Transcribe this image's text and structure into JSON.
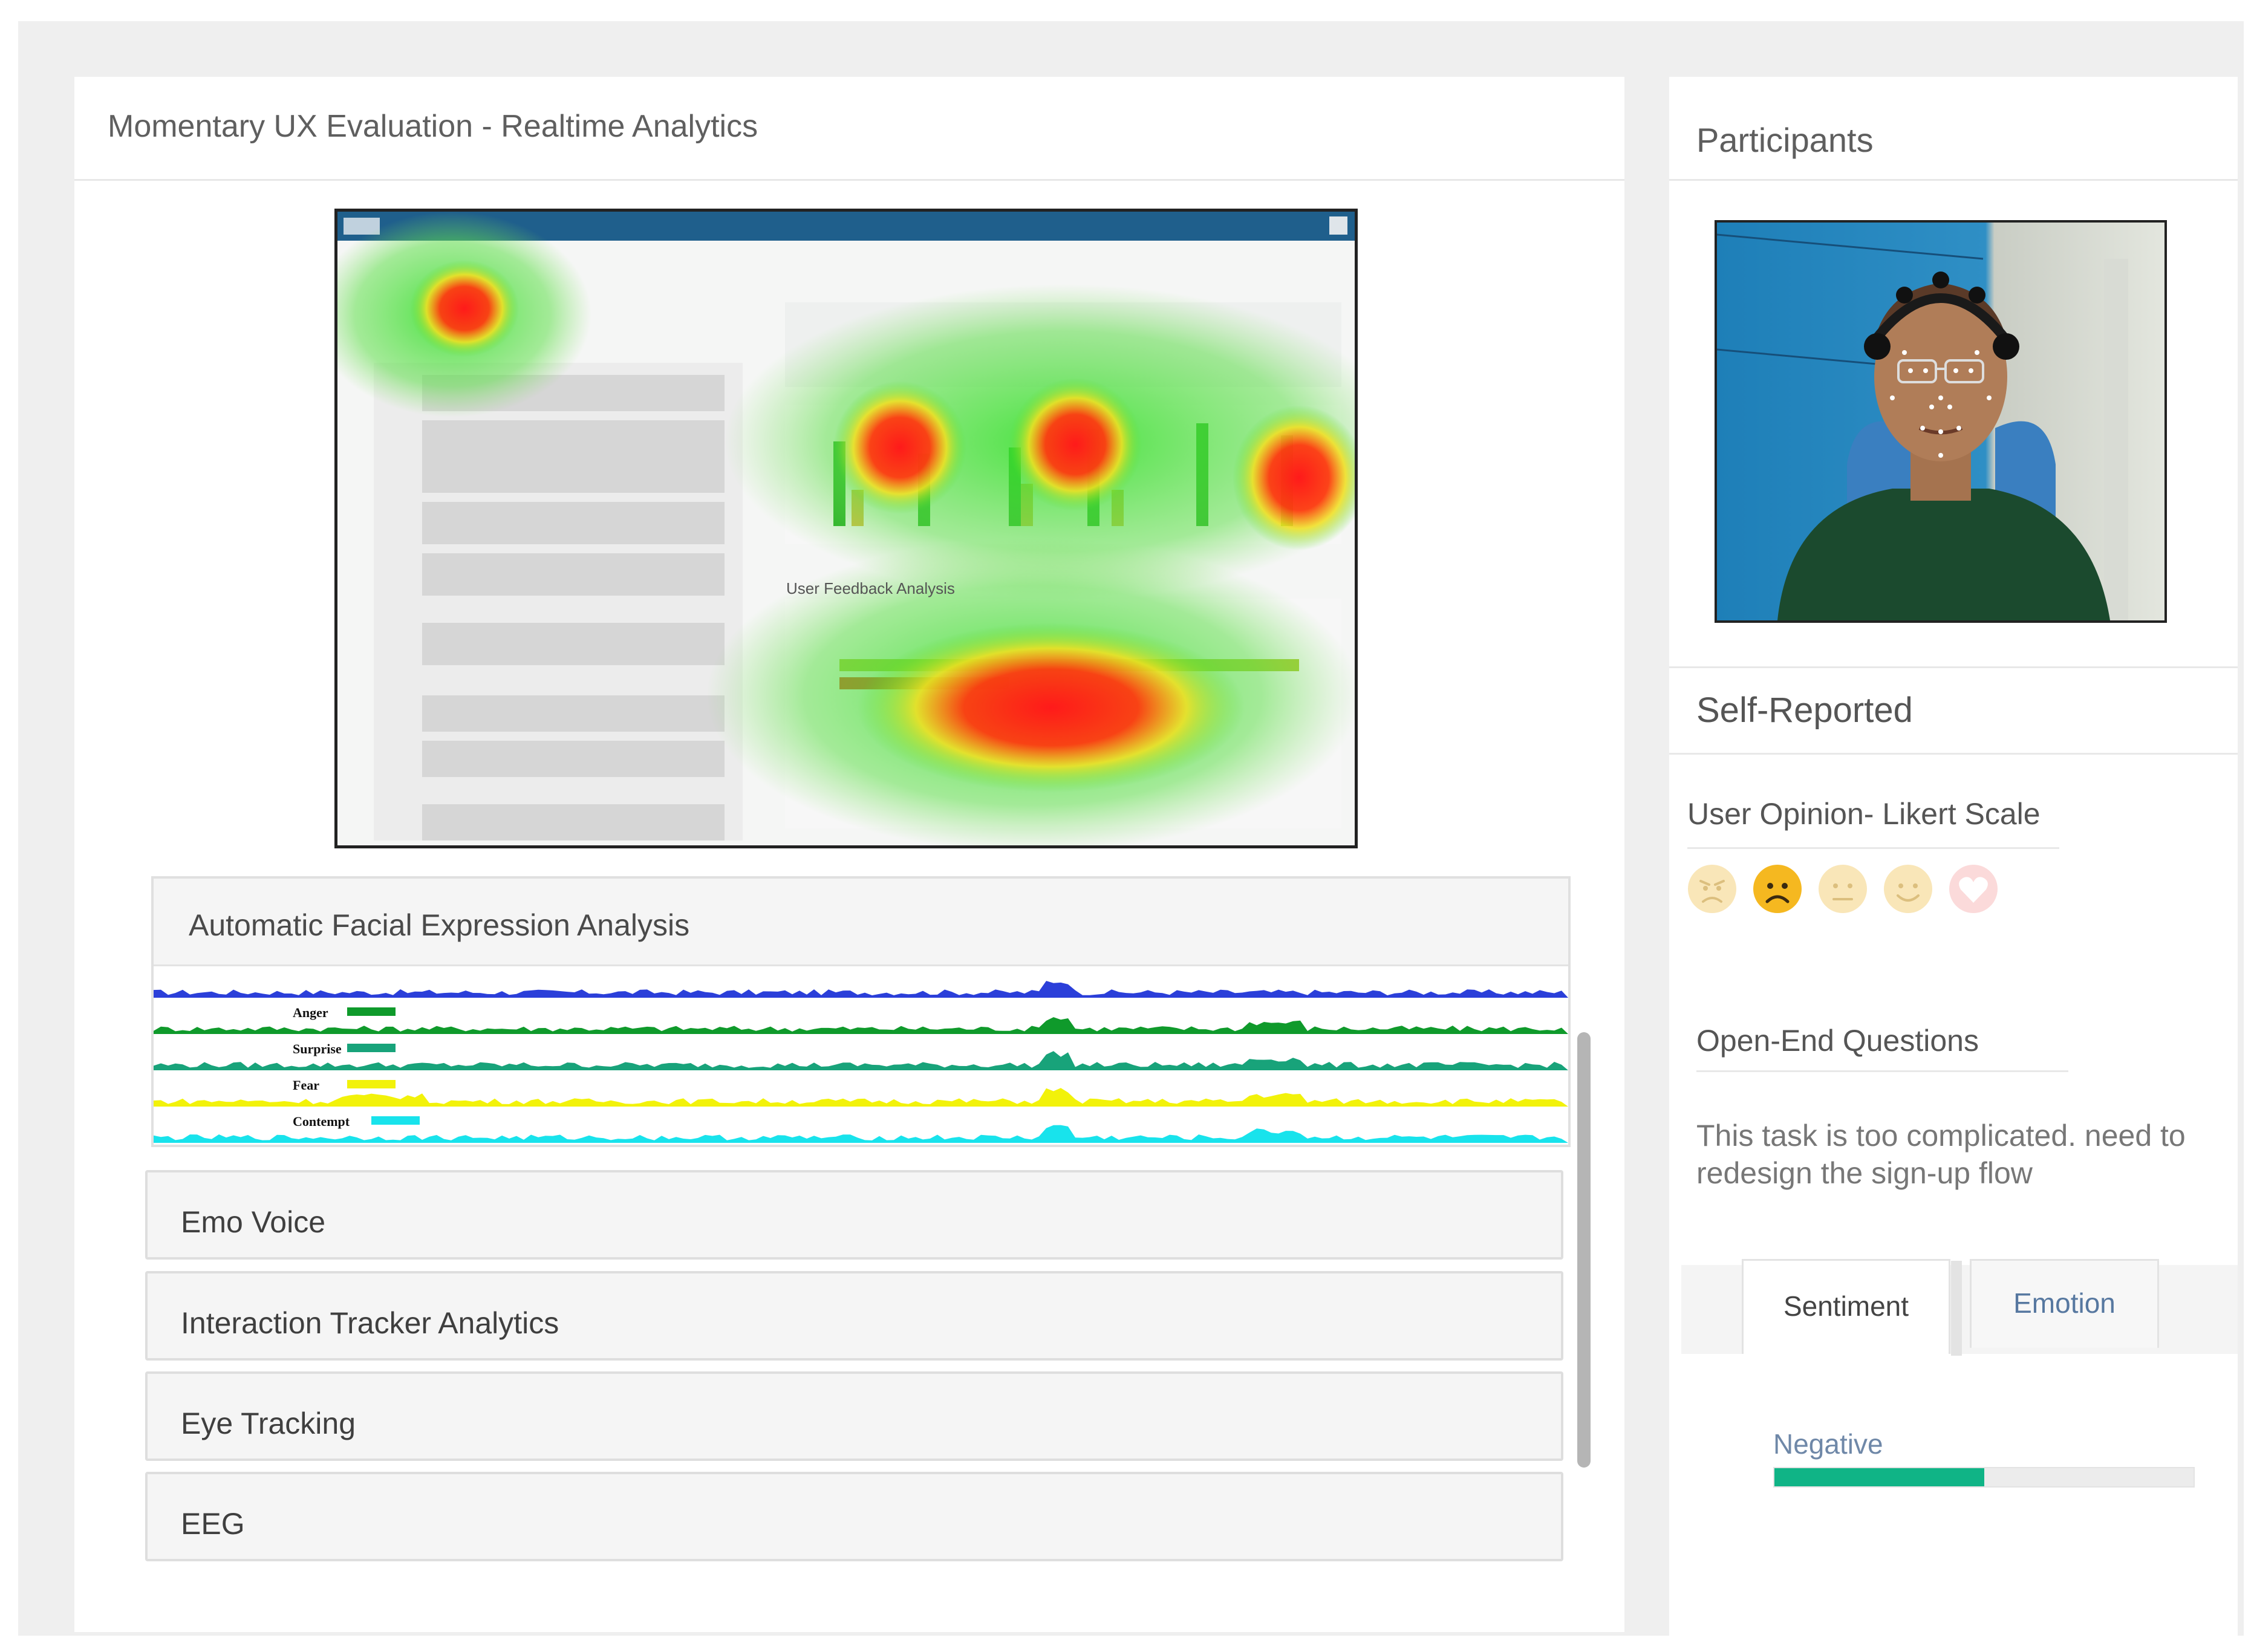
{
  "dashboard": {
    "title": "Momentary UX Evaluation - Realtime Analytics"
  },
  "heatmap_screenshot": {
    "subtitle": "User Feedback Analysis"
  },
  "facial_expression": {
    "title": "Automatic Facial Expression Analysis",
    "tracks": [
      {
        "label": "",
        "color": "#2b3fd9"
      },
      {
        "label": "Anger",
        "color": "#0f9a2b"
      },
      {
        "label": "Surprise",
        "color": "#18a37a"
      },
      {
        "label": "Fear",
        "color": "#f2f20a"
      },
      {
        "label": "Contempt",
        "color": "#18e3ec"
      }
    ]
  },
  "sections": {
    "emo_voice": "Emo Voice",
    "interaction_tracker": "Interaction Tracker Analytics",
    "eye_tracking": "Eye Tracking",
    "eeg": "EEG"
  },
  "participants": {
    "title": "Participants"
  },
  "self_reported": {
    "title": "Self-Reported",
    "likert": {
      "title": "User Opinion- Likert Scale",
      "selected_index": 1,
      "faces": [
        "angry-face-icon",
        "sad-face-icon",
        "neutral-face-icon",
        "smile-face-icon",
        "heart-icon"
      ]
    },
    "open_end": {
      "title": "Open-End Questions",
      "answer": "This task is too complicated. need to redesign the sign-up flow"
    },
    "tabs": {
      "sentiment": "Sentiment",
      "emotion": "Emotion",
      "active": "sentiment"
    },
    "sentiment_result": {
      "label": "Negative",
      "value_fraction": 0.5,
      "color": "#10b486"
    }
  }
}
